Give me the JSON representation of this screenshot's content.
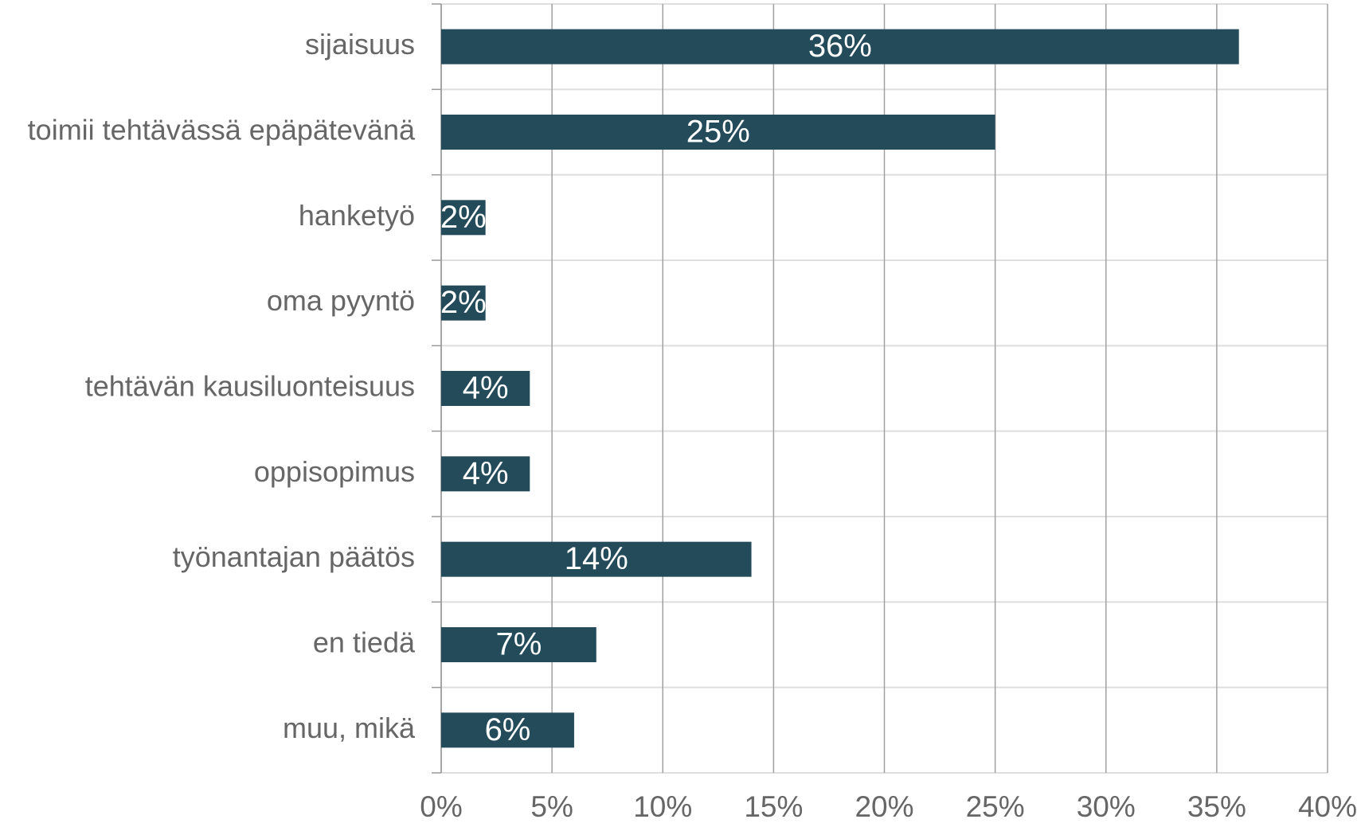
{
  "chart_data": {
    "type": "bar",
    "orientation": "horizontal",
    "categories": [
      "sijaisuus",
      "toimii tehtävässä epäpätevänä",
      "hanketyö",
      "oma pyyntö",
      "tehtävän kausiluonteisuus",
      "oppisopimus",
      "työnantajan päätös",
      "en tiedä",
      "muu, mikä"
    ],
    "values": [
      36,
      25,
      2,
      2,
      4,
      4,
      14,
      7,
      6
    ],
    "value_labels": [
      "36%",
      "25%",
      "2%",
      "2%",
      "4%",
      "4%",
      "14%",
      "7%",
      "6%"
    ],
    "color": "#234b5a",
    "xlim": [
      0,
      40
    ],
    "xticks": [
      {
        "value": 0,
        "label": "0%"
      },
      {
        "value": 5,
        "label": "5%"
      },
      {
        "value": 10,
        "label": "10%"
      },
      {
        "value": 15,
        "label": "15%"
      },
      {
        "value": 20,
        "label": "20%"
      },
      {
        "value": 25,
        "label": "25%"
      },
      {
        "value": 30,
        "label": "30%"
      },
      {
        "value": 35,
        "label": "35%"
      },
      {
        "value": 40,
        "label": "40%"
      }
    ],
    "grid": true
  }
}
